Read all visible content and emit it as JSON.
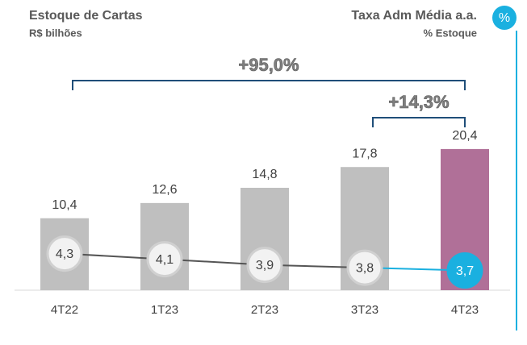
{
  "chart_data": {
    "type": "bar",
    "title": "Estoque de Cartas",
    "subtitle": "R$ bilhões",
    "y2_title": "Taxa Adm Média a.a.",
    "y2_subtitle": "% Estoque",
    "badge": "%",
    "categories": [
      "4T22",
      "1T23",
      "2T23",
      "3T23",
      "4T23"
    ],
    "series": [
      {
        "name": "Estoque de Cartas",
        "colors": [
          "#bfbfbf",
          "#bfbfbf",
          "#bfbfbf",
          "#bfbfbf",
          "#b07098"
        ],
        "values": [
          10.4,
          12.6,
          14.8,
          17.8,
          20.4
        ],
        "value_labels": [
          "10,4",
          "12,6",
          "14,8",
          "17,8",
          "20,4"
        ]
      },
      {
        "name": "Taxa Adm Média a.a.",
        "type": "line",
        "axis": "y2",
        "color": "#555555",
        "highlight_color": "#1ab0e0",
        "values": [
          4.3,
          4.1,
          3.9,
          3.8,
          3.7
        ],
        "value_labels": [
          "4,3",
          "4,1",
          "3,9",
          "3,8",
          "3,7"
        ]
      }
    ],
    "annotations": [
      {
        "text": "+95,0%",
        "from": 0,
        "to": 4
      },
      {
        "text": "+14,3%",
        "from": 3,
        "to": 4
      }
    ],
    "ylim": [
      0,
      24
    ],
    "y2lim": [
      3,
      8.9
    ]
  }
}
